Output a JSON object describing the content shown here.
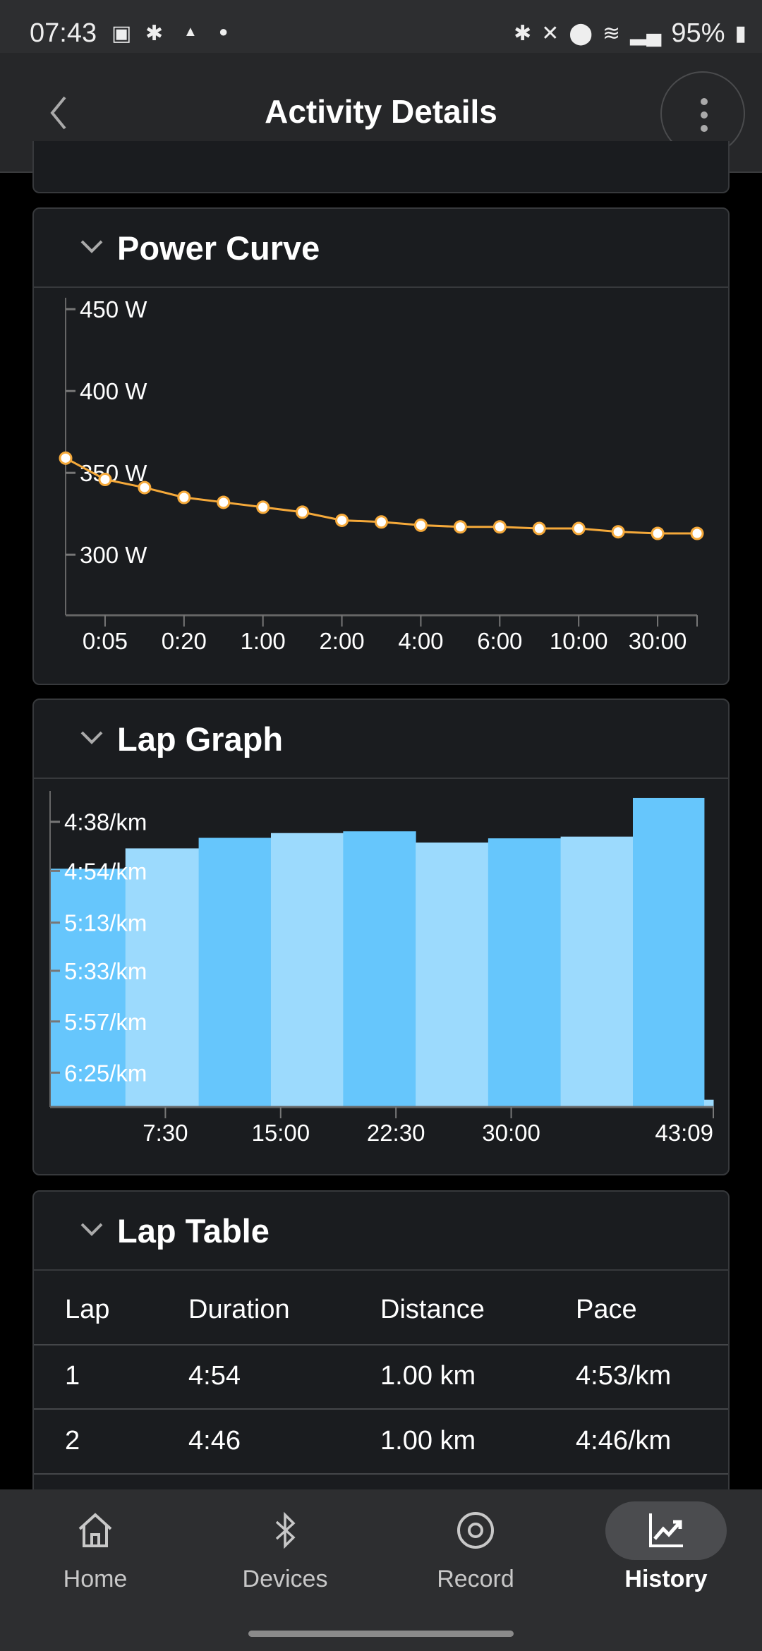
{
  "status_bar": {
    "time": "07:43",
    "battery": "95%",
    "left_icons": [
      "image-icon",
      "bluetooth-icon",
      "android-icon",
      "dot-icon"
    ],
    "right_icons": [
      "bluetooth-icon",
      "mute-icon",
      "location-icon",
      "wifi-icon",
      "signal-icon",
      "battery-charging-icon"
    ]
  },
  "app_bar": {
    "title": "Activity Details",
    "back_icon": "chevron-left-icon",
    "menu_icon": "more-vertical-icon"
  },
  "power_curve": {
    "title": "Power Curve",
    "chart_data": {
      "type": "line",
      "y_unit": "W",
      "y_ticks": [
        "450 W",
        "400 W",
        "350 W",
        "300 W"
      ],
      "y_tick_values": [
        450,
        400,
        350,
        300
      ],
      "ylim": [
        263,
        457
      ],
      "values": [
        359,
        346,
        341,
        335,
        332,
        329,
        326,
        321,
        320,
        318,
        317,
        317,
        316,
        316,
        314,
        313,
        313
      ],
      "x_ticks": [
        {
          "index": 1,
          "label": "0:05"
        },
        {
          "index": 3,
          "label": "0:20"
        },
        {
          "index": 5,
          "label": "1:00"
        },
        {
          "index": 7,
          "label": "2:00"
        },
        {
          "index": 9,
          "label": "4:00"
        },
        {
          "index": 11,
          "label": "6:00"
        },
        {
          "index": 13,
          "label": "10:00"
        },
        {
          "index": 15,
          "label": "30:00"
        }
      ],
      "line_color": "#f5a93a",
      "marker_color": "#ffffff",
      "grid": false
    }
  },
  "lap_graph": {
    "title": "Lap Graph",
    "chart_data": {
      "type": "bar",
      "x_unit": "elapsed time",
      "x_ticks": [
        {
          "seconds": 450,
          "label": "7:30"
        },
        {
          "seconds": 900,
          "label": "15:00"
        },
        {
          "seconds": 1350,
          "label": "22:30"
        },
        {
          "seconds": 1800,
          "label": "30:00"
        },
        {
          "seconds": 2589,
          "label": "43:09"
        }
      ],
      "y_ticks": [
        {
          "pace": "4:38/km",
          "speed_mps": 3.597
        },
        {
          "pace": "4:54/km",
          "speed_mps": 3.401
        },
        {
          "pace": "5:13/km",
          "speed_mps": 3.195
        },
        {
          "pace": "5:33/km",
          "speed_mps": 3.003
        },
        {
          "pace": "5:57/km",
          "speed_mps": 2.801
        },
        {
          "pace": "6:25/km",
          "speed_mps": 2.597
        }
      ],
      "speed_range_mps": [
        2.46,
        3.72
      ],
      "laps": [
        {
          "lap": 1,
          "duration_s": 294,
          "pace": "4:53/km",
          "speed_mps": 3.41
        },
        {
          "lap": 2,
          "duration_s": 286,
          "pace": "4:46/km",
          "speed_mps": 3.491
        },
        {
          "lap": 3,
          "duration_s": 282,
          "pace": "4:43/km",
          "speed_mps": 3.533
        },
        {
          "lap": 4,
          "duration_s": 282,
          "pace": "4:41/km",
          "speed_mps": 3.552
        },
        {
          "lap": 5,
          "duration_s": 283,
          "pace": "4:41/km",
          "speed_mps": 3.559
        },
        {
          "lap": 6,
          "duration_s": 283,
          "pace": "4:45/km",
          "speed_mps": 3.514
        },
        {
          "lap": 7,
          "duration_s": 283,
          "pace": "4:43/km",
          "speed_mps": 3.531
        },
        {
          "lap": 8,
          "duration_s": 282,
          "pace": "4:43/km",
          "speed_mps": 3.538
        },
        {
          "lap": 9,
          "duration_s": 278,
          "pace": "4:31/km",
          "speed_mps": 3.692
        },
        {
          "lap": 10,
          "duration_s": 36,
          "pace": "6:42/km",
          "speed_mps": 2.489
        }
      ],
      "colors": {
        "odd": "#66c6fc",
        "even": "#9cdafd"
      }
    }
  },
  "lap_table": {
    "title": "Lap Table",
    "columns": [
      "Lap",
      "Duration",
      "Distance",
      "Pace"
    ],
    "rows": [
      [
        "1",
        "4:54",
        "1.00 km",
        "4:53/km"
      ],
      [
        "2",
        "4:46",
        "1.00 km",
        "4:46/km"
      ]
    ]
  },
  "bottom_nav": {
    "items": [
      {
        "label": "Home",
        "icon": "home-icon"
      },
      {
        "label": "Devices",
        "icon": "bluetooth-icon"
      },
      {
        "label": "Record",
        "icon": "record-icon"
      },
      {
        "label": "History",
        "icon": "trending-up-chart-icon",
        "active": true
      }
    ]
  }
}
